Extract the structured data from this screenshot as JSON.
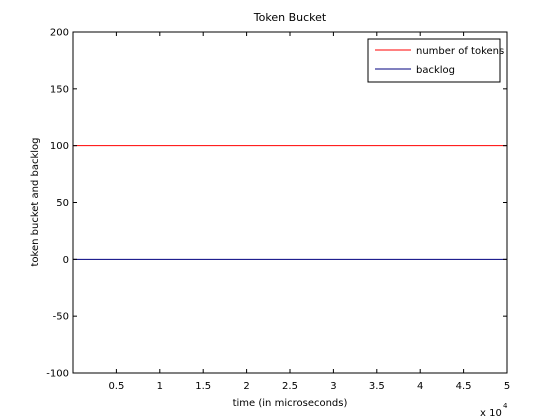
{
  "chart_data": {
    "type": "line",
    "title": "Token Bucket",
    "xlabel": "time (in microseconds)",
    "ylabel": "token bucket and backlog",
    "xlim": [
      0,
      5
    ],
    "ylim": [
      -100,
      200
    ],
    "x_scale_label": "x 10",
    "x_scale_exponent": "4",
    "xticks": [
      0.5,
      1,
      1.5,
      2,
      2.5,
      3,
      3.5,
      4,
      4.5,
      5
    ],
    "xtick_labels": [
      "0.5",
      "1",
      "1.5",
      "2",
      "2.5",
      "3",
      "3.5",
      "4",
      "4.5",
      "5"
    ],
    "yticks": [
      -100,
      -50,
      0,
      50,
      100,
      150,
      200
    ],
    "ytick_labels": [
      "-100",
      "-50",
      "0",
      "50",
      "100",
      "150",
      "200"
    ],
    "grid": false,
    "legend_position": "top-right",
    "series": [
      {
        "name": "number of tokens",
        "color": "#ff0000",
        "x": [
          0,
          5
        ],
        "y": [
          100,
          100
        ]
      },
      {
        "name": "backlog",
        "color": "#00007f",
        "x": [
          0,
          5
        ],
        "y": [
          0,
          0
        ]
      }
    ]
  }
}
